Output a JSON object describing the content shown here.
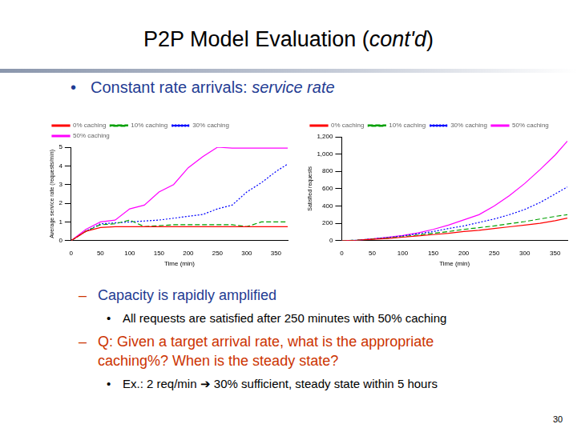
{
  "slide": {
    "title": [
      {
        "text": "P2P Model Evaluation ("
      },
      {
        "text": "cont'd",
        "italic": true
      },
      {
        "text": ")"
      }
    ],
    "bullets": [
      {
        "level": 1,
        "parts": [
          {
            "text": "Constant rate arrivals: "
          },
          {
            "text": "service rate",
            "italic": true
          }
        ]
      },
      {
        "level": 2,
        "parts": [
          {
            "text": "Capacity is rapidly amplified"
          }
        ]
      },
      {
        "level": 3,
        "parts": [
          {
            "text": "All requests are satisfied after 250 minutes with 50% caching"
          }
        ]
      },
      {
        "level": 2,
        "parts": [
          {
            "text": "Q: Given a target arrival rate, what is the appropriate caching%? When is the steady state?",
            "red": true
          }
        ]
      },
      {
        "level": 3,
        "parts": [
          {
            "text": "Ex.: 2 req/min ➔ 30% sufficient, steady state  within 5 hours"
          }
        ]
      }
    ],
    "page_number": 30
  },
  "chart_data": [
    {
      "type": "line",
      "x_label": "Time (min)",
      "y_label": "Average service rate (requests/min)",
      "x": [
        0,
        25,
        50,
        75,
        100,
        125,
        150,
        175,
        200,
        225,
        250,
        275,
        300,
        325,
        350,
        370
      ],
      "xlim": [
        0,
        370
      ],
      "xticks": [
        0,
        50,
        100,
        150,
        200,
        250,
        300,
        350
      ],
      "ylim": [
        0,
        5
      ],
      "yticks": [
        0,
        1,
        2,
        3,
        4,
        5
      ],
      "grid": false,
      "legend": "upper left",
      "series": [
        {
          "name": "0% caching",
          "color": "#ff0000",
          "line_style": "solid",
          "values": [
            0,
            0.5,
            0.7,
            0.75,
            0.75,
            0.75,
            0.75,
            0.75,
            0.75,
            0.75,
            0.75,
            0.75,
            0.75,
            0.75,
            0.75,
            0.75
          ]
        },
        {
          "name": "10% caching",
          "color": "#00a000",
          "line_style": "dashed",
          "values": [
            0,
            0.5,
            0.85,
            0.9,
            1.1,
            0.75,
            0.8,
            0.85,
            0.85,
            0.85,
            0.85,
            0.85,
            0.75,
            1.0,
            1.0,
            1.0
          ]
        },
        {
          "name": "30% caching",
          "color": "#0000ff",
          "line_style": "dotted",
          "values": [
            0,
            0.5,
            0.9,
            0.95,
            1.0,
            1.05,
            1.1,
            1.2,
            1.3,
            1.4,
            1.7,
            1.9,
            2.6,
            3.1,
            3.7,
            4.1
          ]
        },
        {
          "name": "50% caching",
          "color": "#ff00ff",
          "line_style": "solid",
          "values": [
            0,
            0.6,
            1.0,
            1.1,
            1.7,
            1.9,
            2.6,
            3.0,
            3.9,
            4.5,
            5.0,
            4.95,
            4.95,
            4.95,
            4.95,
            4.95
          ]
        }
      ]
    },
    {
      "type": "line",
      "x_label": "Time (min)",
      "y_label": "Satisfied requests",
      "x": [
        0,
        25,
        50,
        75,
        100,
        125,
        150,
        175,
        200,
        225,
        250,
        275,
        300,
        325,
        350,
        370
      ],
      "xlim": [
        0,
        370
      ],
      "xticks": [
        0,
        50,
        100,
        150,
        200,
        250,
        300,
        350
      ],
      "ylim": [
        0,
        1200
      ],
      "yticks": [
        0,
        200,
        400,
        600,
        800,
        1000,
        1200
      ],
      "grid": false,
      "legend": "upper left",
      "series": [
        {
          "name": "0% caching",
          "color": "#ff0000",
          "line_style": "solid",
          "values": [
            0,
            5,
            15,
            25,
            40,
            55,
            70,
            85,
            105,
            120,
            140,
            160,
            180,
            200,
            230,
            260
          ]
        },
        {
          "name": "10% caching",
          "color": "#00a000",
          "line_style": "dashed",
          "values": [
            0,
            5,
            18,
            30,
            45,
            65,
            85,
            105,
            130,
            150,
            170,
            195,
            220,
            250,
            280,
            300
          ]
        },
        {
          "name": "30% caching",
          "color": "#0000ff",
          "line_style": "dotted",
          "values": [
            0,
            5,
            20,
            35,
            55,
            80,
            105,
            140,
            170,
            210,
            250,
            300,
            360,
            440,
            540,
            620
          ]
        },
        {
          "name": "50% caching",
          "color": "#ff00ff",
          "line_style": "solid",
          "values": [
            0,
            5,
            20,
            40,
            60,
            90,
            130,
            180,
            240,
            300,
            400,
            520,
            660,
            820,
            990,
            1150
          ]
        }
      ]
    }
  ]
}
